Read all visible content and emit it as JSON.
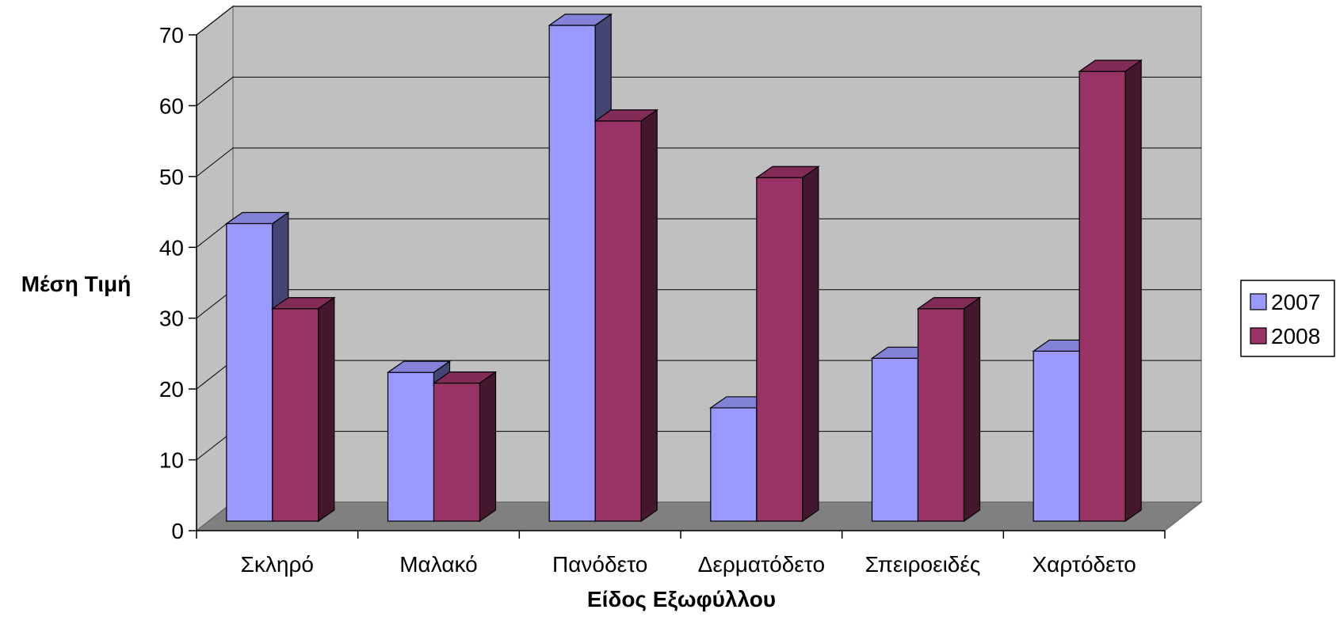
{
  "chart_data": {
    "type": "bar",
    "title": "",
    "xlabel": "Είδος Εξωφύλλου",
    "ylabel": "Μέση Τιμή",
    "ylim": [
      0,
      70
    ],
    "yticks": [
      0,
      10,
      20,
      30,
      40,
      50,
      60,
      70
    ],
    "grid": true,
    "legend": "right",
    "categories": [
      "Σκληρό",
      "Μαλακό",
      "Πανόδετο",
      "Δερματόδετο",
      "Σπειροειδές",
      "Χαρτόδετο"
    ],
    "series": [
      {
        "name": "2007",
        "values": [
          42,
          21,
          70,
          16,
          23,
          24
        ],
        "color": "#9999FF"
      },
      {
        "name": "2008",
        "values": [
          30,
          19.5,
          56.5,
          48.5,
          30,
          63.5
        ],
        "color": "#993366"
      }
    ],
    "colors": {
      "wall": "#C0C0C0",
      "floor": "#808080",
      "gridline": "#000000"
    }
  }
}
